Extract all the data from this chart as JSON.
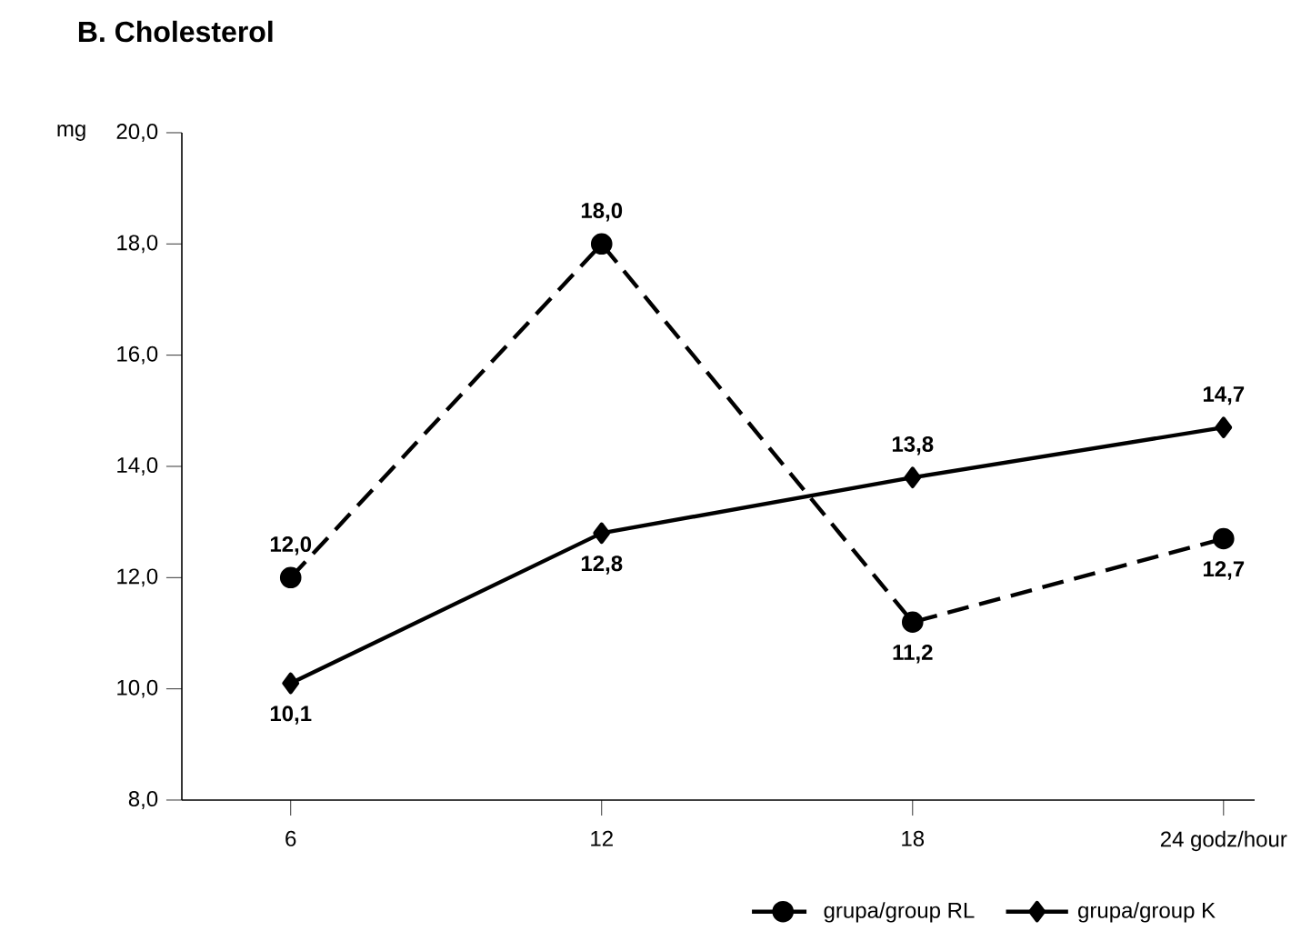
{
  "chart_data": {
    "type": "line",
    "title": "B. Cholesterol",
    "ylabel": "mg",
    "categories": [
      "6",
      "12",
      "18",
      "24 godz/hour"
    ],
    "series": [
      {
        "name": "grupa/group RL",
        "color": "#000000",
        "values": [
          12.0,
          18.0,
          11.2,
          12.7
        ],
        "value_labels": [
          "12,0",
          "18,0",
          "11,2",
          "12,7"
        ],
        "marker": "circle",
        "line_style": "dashed"
      },
      {
        "name": "grupa/group K",
        "color": "#000000",
        "values": [
          10.1,
          12.8,
          13.8,
          14.7
        ],
        "value_labels": [
          "10,1",
          "12,8",
          "13,8",
          "14,7"
        ],
        "marker": "diamond",
        "line_style": "solid"
      }
    ],
    "ylim": [
      8,
      20
    ],
    "yticks": [
      {
        "value": 8,
        "label": "8,0"
      },
      {
        "value": 10,
        "label": "10,0"
      },
      {
        "value": 12,
        "label": "12,0"
      },
      {
        "value": 14,
        "label": "14,0"
      },
      {
        "value": 16,
        "label": "16,0"
      },
      {
        "value": 18,
        "label": "18,0"
      },
      {
        "value": 20,
        "label": "20,0"
      }
    ],
    "grid": false,
    "legend": "bottom"
  }
}
